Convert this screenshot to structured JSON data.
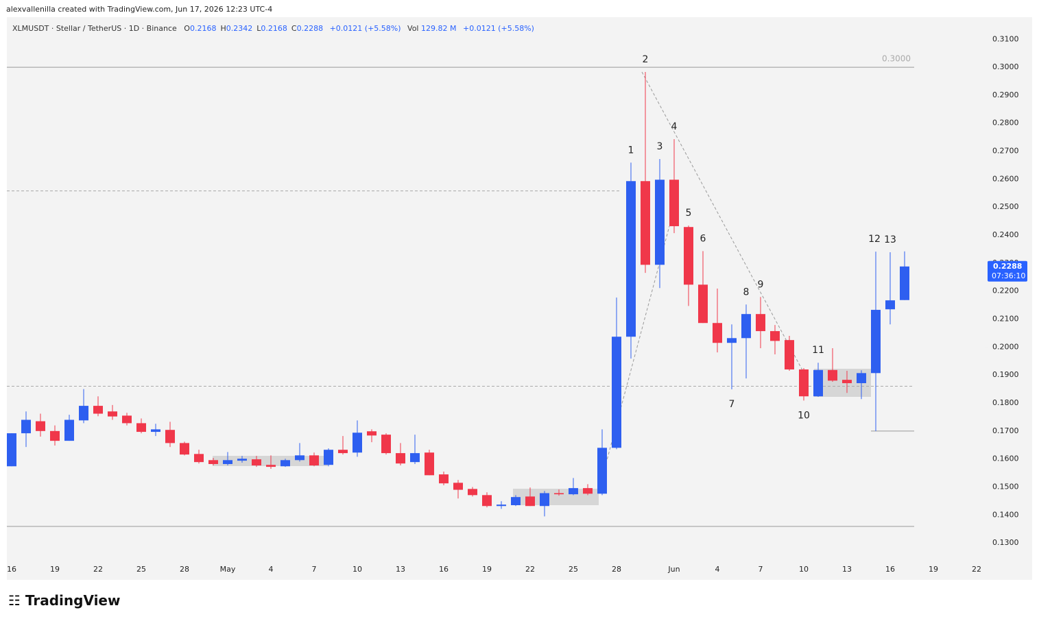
{
  "header": {
    "credit": "alexvallenilla created with TradingView.com, Jun 17, 2026 12:23 UTC-4",
    "symbol": "XLMUSDT · Stellar / TetherUS · 1D · Binance",
    "ohlc": [
      {
        "label": "O",
        "value": "0.2168"
      },
      {
        "label": "H",
        "value": "0.2342"
      },
      {
        "label": "L",
        "value": "0.2168"
      },
      {
        "label": "C",
        "value": "0.2288"
      }
    ],
    "change": "+0.0121 (+5.58%)",
    "vol_label": "Vol",
    "vol": "129.82 M",
    "vol_change": "+0.0121 (+5.58%)",
    "logo": "TradingView"
  },
  "chart_data": {
    "type": "candlestick",
    "categories": [
      "16",
      null,
      null,
      "19",
      null,
      null,
      "22",
      null,
      null,
      "25",
      null,
      null,
      "28",
      null,
      null,
      "May",
      null,
      null,
      "4",
      null,
      null,
      "7",
      null,
      null,
      "10",
      null,
      null,
      "13",
      null,
      null,
      "16",
      null,
      null,
      "19",
      null,
      null,
      "22",
      null,
      null,
      "25",
      null,
      null,
      "28",
      null,
      null,
      null,
      "Jun",
      null,
      null,
      "4",
      null,
      null,
      "7",
      null,
      null,
      "10",
      null,
      null,
      "13",
      null,
      null,
      "16",
      null,
      null,
      "19",
      null,
      null,
      "22"
    ],
    "open": [
      0.1574,
      0.1692,
      0.1735,
      0.17,
      0.1665,
      0.1738,
      0.179,
      0.177,
      0.1755,
      0.1728,
      0.1697,
      0.1704,
      0.1657,
      0.1618,
      0.1596,
      0.1582,
      0.1594,
      0.1599,
      0.1579,
      0.1574,
      0.1596,
      0.1613,
      0.1579,
      0.1633,
      0.1623,
      0.1699,
      0.1687,
      0.1621,
      0.1589,
      0.1623,
      0.1545,
      0.1515,
      0.1493,
      0.1471,
      0.1432,
      0.1435,
      0.1466,
      0.1432,
      0.1478,
      0.1474,
      0.1496,
      0.1476,
      0.164,
      0.2037,
      0.2593,
      0.2294,
      0.2598,
      0.2429,
      0.2223,
      0.2086,
      0.2015,
      0.2032,
      0.2118,
      0.2057,
      0.2025,
      0.192,
      0.1824,
      0.1918,
      0.1883,
      0.1871,
      0.1907,
      0.2135,
      0.2168,
      null,
      null,
      null,
      null,
      null
    ],
    "high": [
      0.1692,
      0.177,
      0.1762,
      0.172,
      0.1758,
      0.185,
      0.1824,
      0.1793,
      0.1765,
      0.1745,
      0.1726,
      0.1733,
      0.1662,
      0.1633,
      0.1604,
      0.1625,
      0.1611,
      0.1611,
      0.1613,
      0.1601,
      0.1657,
      0.1623,
      0.1638,
      0.1682,
      0.1738,
      0.1706,
      0.1692,
      0.1657,
      0.1687,
      0.1633,
      0.1555,
      0.1525,
      0.15,
      0.1481,
      0.1449,
      0.1471,
      0.1498,
      0.1486,
      0.1491,
      0.1532,
      0.151,
      0.1706,
      0.2177,
      0.2659,
      0.2983,
      0.2672,
      0.2743,
      0.2434,
      0.2343,
      0.2209,
      0.2081,
      0.2152,
      0.2179,
      0.2079,
      0.204,
      0.1925,
      0.1944,
      0.1996,
      0.1915,
      0.1917,
      0.2341,
      0.2339,
      0.2342,
      null,
      null,
      null,
      null,
      null
    ],
    "low": [
      0.1574,
      0.1643,
      0.168,
      0.1648,
      0.1665,
      0.1728,
      0.1753,
      0.174,
      0.172,
      0.1692,
      0.1682,
      0.1643,
      0.1613,
      0.1584,
      0.1577,
      0.1577,
      0.1587,
      0.1572,
      0.1565,
      0.1572,
      0.1591,
      0.1574,
      0.1574,
      0.1616,
      0.1608,
      0.166,
      0.1616,
      0.1577,
      0.1582,
      0.1542,
      0.1506,
      0.1459,
      0.1466,
      0.1427,
      0.1422,
      0.1432,
      0.1432,
      0.1395,
      0.1469,
      0.1471,
      0.1471,
      0.1471,
      0.1635,
      0.1959,
      0.2265,
      0.2211,
      0.2407,
      0.2147,
      0.2086,
      0.1981,
      0.1849,
      0.1888,
      0.1996,
      0.1974,
      0.1915,
      0.1809,
      0.1822,
      0.1876,
      0.1836,
      0.1814,
      0.17,
      0.2081,
      0.2168,
      null,
      null,
      null,
      null,
      null
    ],
    "close": [
      0.1692,
      0.174,
      0.17,
      0.1665,
      0.174,
      0.179,
      0.1762,
      0.1752,
      0.1728,
      0.1697,
      0.1706,
      0.1657,
      0.1616,
      0.1589,
      0.1582,
      0.1596,
      0.1601,
      0.1577,
      0.1572,
      0.1596,
      0.1613,
      0.1577,
      0.1633,
      0.1621,
      0.1694,
      0.1684,
      0.1621,
      0.1584,
      0.1621,
      0.1542,
      0.1513,
      0.149,
      0.1471,
      0.1432,
      0.1437,
      0.1464,
      0.1432,
      0.1478,
      0.1474,
      0.1496,
      0.1476,
      0.164,
      0.2037,
      0.2593,
      0.2294,
      0.2598,
      0.2432,
      0.2223,
      0.2086,
      0.2015,
      0.2032,
      0.2118,
      0.2057,
      0.2022,
      0.192,
      0.1824,
      0.1918,
      0.188,
      0.1871,
      0.1907,
      0.2133,
      0.2167,
      0.2288,
      null,
      null,
      null,
      null,
      null
    ],
    "up_color": "#2e5ff0",
    "down_color": "#f0374a",
    "ylim": [
      0.1244,
      0.3179
    ],
    "yticks": [
      {
        "value": 0.13,
        "label": "0.1300"
      },
      {
        "value": 0.14,
        "label": "0.1400"
      },
      {
        "value": 0.15,
        "label": "0.1500"
      },
      {
        "value": 0.16,
        "label": "0.1600"
      },
      {
        "value": 0.17,
        "label": "0.1700"
      },
      {
        "value": 0.18,
        "label": "0.1800"
      },
      {
        "value": 0.19,
        "label": "0.1900"
      },
      {
        "value": 0.2,
        "label": "0.2000"
      },
      {
        "value": 0.21,
        "label": "0.2100"
      },
      {
        "value": 0.22,
        "label": "0.2200"
      },
      {
        "value": 0.23,
        "label": "0.2300"
      },
      {
        "value": 0.24,
        "label": "0.2400"
      },
      {
        "value": 0.25,
        "label": "0.2500"
      },
      {
        "value": 0.26,
        "label": "0.2600"
      },
      {
        "value": 0.27,
        "label": "0.2700"
      },
      {
        "value": 0.28,
        "label": "0.2800"
      },
      {
        "value": 0.29,
        "label": "0.2900"
      },
      {
        "value": 0.3,
        "label": "0.3000"
      },
      {
        "value": 0.31,
        "label": "0.3100"
      }
    ],
    "lines": [
      {
        "value": 0.3,
        "label": "0.3000",
        "style": "solid"
      },
      {
        "value": 0.2558,
        "style": "dashed"
      },
      {
        "value": 0.186,
        "style": "dashed"
      },
      {
        "value": 0.1359,
        "style": "solid"
      },
      {
        "value": 0.17,
        "style": "solid"
      }
    ],
    "annotations": [
      "1",
      "2",
      "3",
      "4",
      "5",
      "6",
      "7",
      "8",
      "9",
      "10",
      "11",
      "12",
      "13"
    ],
    "last_price_label": "0.2288",
    "countdown": "07:36:10"
  }
}
